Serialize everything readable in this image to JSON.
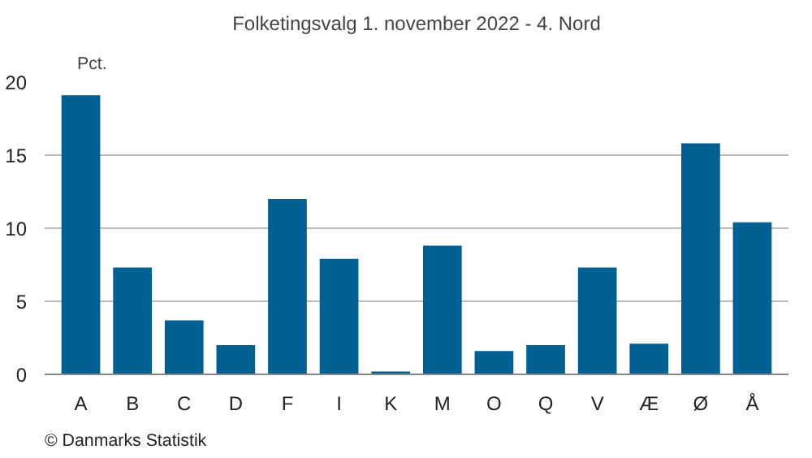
{
  "chart_data": {
    "type": "bar",
    "title": "Folketingsvalg 1. november 2022 - 4. Nord",
    "ylabel": "Pct.",
    "categories": [
      "A",
      "B",
      "C",
      "D",
      "F",
      "I",
      "K",
      "M",
      "O",
      "Q",
      "V",
      "Æ",
      "Ø",
      "Å"
    ],
    "values": [
      19.1,
      7.3,
      3.7,
      2.0,
      12.0,
      7.9,
      0.2,
      8.8,
      1.6,
      2.0,
      7.3,
      2.1,
      15.8,
      10.4
    ],
    "color": "#006092",
    "ylim": [
      0,
      20
    ],
    "yticks": [
      0,
      5,
      10,
      15,
      20
    ],
    "grid": "y",
    "annotations": [
      "© Danmarks Statistik"
    ]
  }
}
